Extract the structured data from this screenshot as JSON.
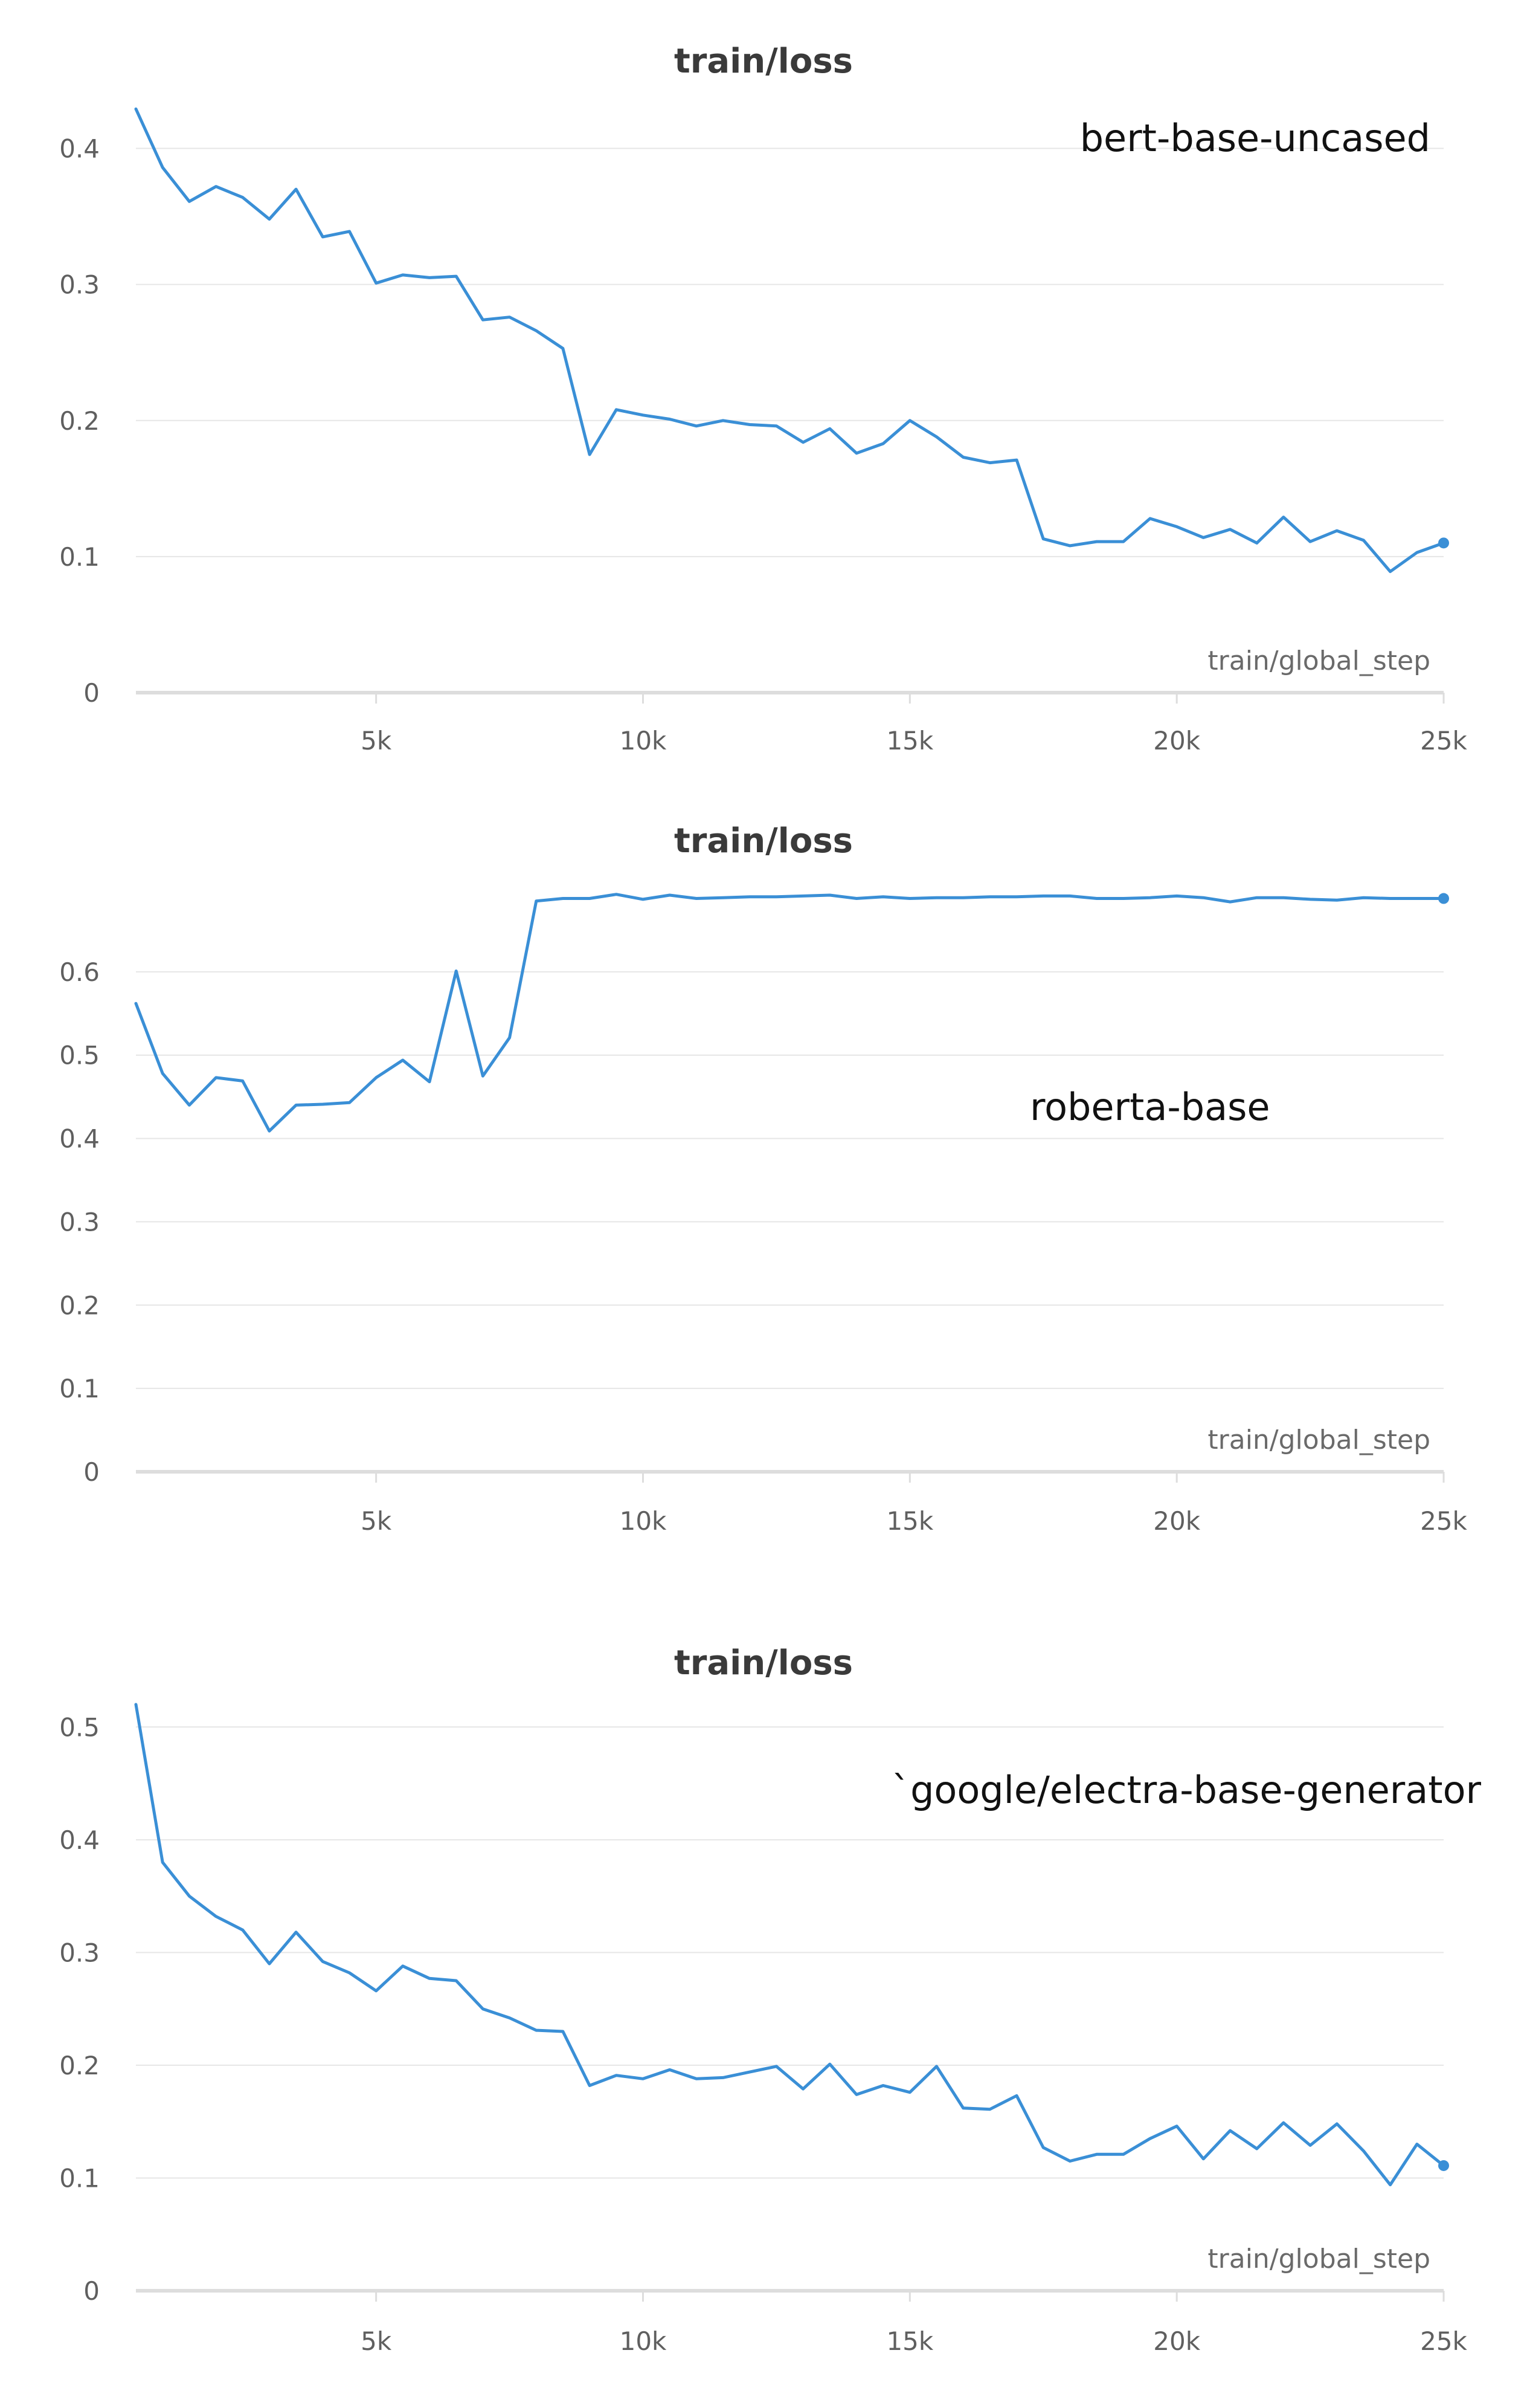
{
  "chart_data": [
    {
      "type": "line",
      "title": "train/loss",
      "xlabel": "train/global_step",
      "annotation": "bert-base-uncased",
      "ylim": [
        0,
        0.43
      ],
      "xlim": [
        0,
        24500
      ],
      "yticks": [
        0,
        0.1,
        0.2,
        0.3,
        0.4
      ],
      "ytick_labels": [
        "0",
        "0.1",
        "0.2",
        "0.3",
        "0.4"
      ],
      "xticks": [
        4500,
        9500,
        14500,
        19500,
        24500
      ],
      "xtick_labels": [
        "5k",
        "10k",
        "15k",
        "20k",
        "25k"
      ],
      "grid": true,
      "line_color": "#3a8fd6",
      "series": [
        {
          "x": [
            0,
            500,
            1000,
            1500,
            2000,
            2500,
            3000,
            3500,
            4000,
            4500,
            5000,
            5500,
            6000,
            6500,
            7000,
            7500,
            8000,
            8500,
            9000,
            9500,
            10000,
            10500,
            11000,
            11500,
            12000,
            12500,
            13000,
            13500,
            14000,
            14500,
            15000,
            15500,
            16000,
            16500,
            17000,
            17500,
            18000,
            18500,
            19000,
            19500,
            20000,
            20500,
            21000,
            21500,
            22000,
            22500,
            23000,
            23500,
            24000,
            24500
          ],
          "values": [
            0.429,
            0.386,
            0.361,
            0.372,
            0.364,
            0.348,
            0.37,
            0.335,
            0.339,
            0.301,
            0.307,
            0.305,
            0.306,
            0.274,
            0.276,
            0.266,
            0.253,
            0.175,
            0.208,
            0.204,
            0.201,
            0.196,
            0.2,
            0.197,
            0.196,
            0.184,
            0.194,
            0.176,
            0.183,
            0.2,
            0.188,
            0.173,
            0.169,
            0.171,
            0.113,
            0.108,
            0.111,
            0.111,
            0.128,
            0.122,
            0.114,
            0.12,
            0.11,
            0.129,
            0.111,
            0.119,
            0.112,
            0.089,
            0.103,
            0.11
          ]
        }
      ]
    },
    {
      "type": "line",
      "title": "train/loss",
      "xlabel": "train/global_step",
      "annotation": "roberta-base",
      "ylim": [
        0,
        0.7
      ],
      "xlim": [
        0,
        24500
      ],
      "yticks": [
        0,
        0.1,
        0.2,
        0.3,
        0.4,
        0.5,
        0.6
      ],
      "ytick_labels": [
        "0",
        "0.1",
        "0.2",
        "0.3",
        "0.4",
        "0.5",
        "0.6"
      ],
      "xticks": [
        4500,
        9500,
        14500,
        19500,
        24500
      ],
      "xtick_labels": [
        "5k",
        "10k",
        "15k",
        "20k",
        "25k"
      ],
      "grid": true,
      "line_color": "#3a8fd6",
      "series": [
        {
          "x": [
            0,
            500,
            1000,
            1500,
            2000,
            2500,
            3000,
            3500,
            4000,
            4500,
            5000,
            5500,
            6000,
            6500,
            7000,
            7500,
            8000,
            8500,
            9000,
            9500,
            10000,
            10500,
            11000,
            11500,
            12000,
            12500,
            13000,
            13500,
            14000,
            14500,
            15000,
            15500,
            16000,
            16500,
            17000,
            17500,
            18000,
            18500,
            19000,
            19500,
            20000,
            20500,
            21000,
            21500,
            22000,
            22500,
            23000,
            23500,
            24000,
            24500
          ],
          "values": [
            0.562,
            0.478,
            0.44,
            0.473,
            0.469,
            0.409,
            0.44,
            0.441,
            0.443,
            0.473,
            0.494,
            0.468,
            0.601,
            0.475,
            0.521,
            0.685,
            0.688,
            0.688,
            0.693,
            0.687,
            0.692,
            0.688,
            0.689,
            0.69,
            0.69,
            0.691,
            0.692,
            0.688,
            0.69,
            0.688,
            0.689,
            0.689,
            0.69,
            0.69,
            0.691,
            0.691,
            0.688,
            0.688,
            0.689,
            0.691,
            0.689,
            0.684,
            0.689,
            0.689,
            0.687,
            0.686,
            0.689,
            0.688,
            0.688,
            0.688
          ]
        }
      ]
    },
    {
      "type": "line",
      "title": "train/loss",
      "xlabel": "train/global_step",
      "annotation": "`google/electra-base-generator",
      "ylim": [
        0,
        0.52
      ],
      "xlim": [
        0,
        24500
      ],
      "yticks": [
        0,
        0.1,
        0.2,
        0.3,
        0.4,
        0.5
      ],
      "ytick_labels": [
        "0",
        "0.1",
        "0.2",
        "0.3",
        "0.4",
        "0.5"
      ],
      "xticks": [
        4500,
        9500,
        14500,
        19500,
        24500
      ],
      "xtick_labels": [
        "5k",
        "10k",
        "15k",
        "20k",
        "25k"
      ],
      "grid": true,
      "line_color": "#3a8fd6",
      "series": [
        {
          "x": [
            0,
            500,
            1000,
            1500,
            2000,
            2500,
            3000,
            3500,
            4000,
            4500,
            5000,
            5500,
            6000,
            6500,
            7000,
            7500,
            8000,
            8500,
            9000,
            9500,
            10000,
            10500,
            11000,
            11500,
            12000,
            12500,
            13000,
            13500,
            14000,
            14500,
            15000,
            15500,
            16000,
            16500,
            17000,
            17500,
            18000,
            18500,
            19000,
            19500,
            20000,
            20500,
            21000,
            21500,
            22000,
            22500,
            23000,
            23500,
            24000,
            24500
          ],
          "values": [
            0.52,
            0.38,
            0.35,
            0.332,
            0.32,
            0.29,
            0.318,
            0.292,
            0.282,
            0.266,
            0.288,
            0.277,
            0.275,
            0.25,
            0.242,
            0.231,
            0.23,
            0.182,
            0.191,
            0.188,
            0.196,
            0.188,
            0.189,
            0.194,
            0.199,
            0.179,
            0.201,
            0.174,
            0.182,
            0.176,
            0.199,
            0.162,
            0.161,
            0.173,
            0.127,
            0.115,
            0.121,
            0.121,
            0.135,
            0.146,
            0.117,
            0.142,
            0.126,
            0.149,
            0.129,
            0.148,
            0.124,
            0.094,
            0.13,
            0.111
          ]
        }
      ]
    }
  ]
}
